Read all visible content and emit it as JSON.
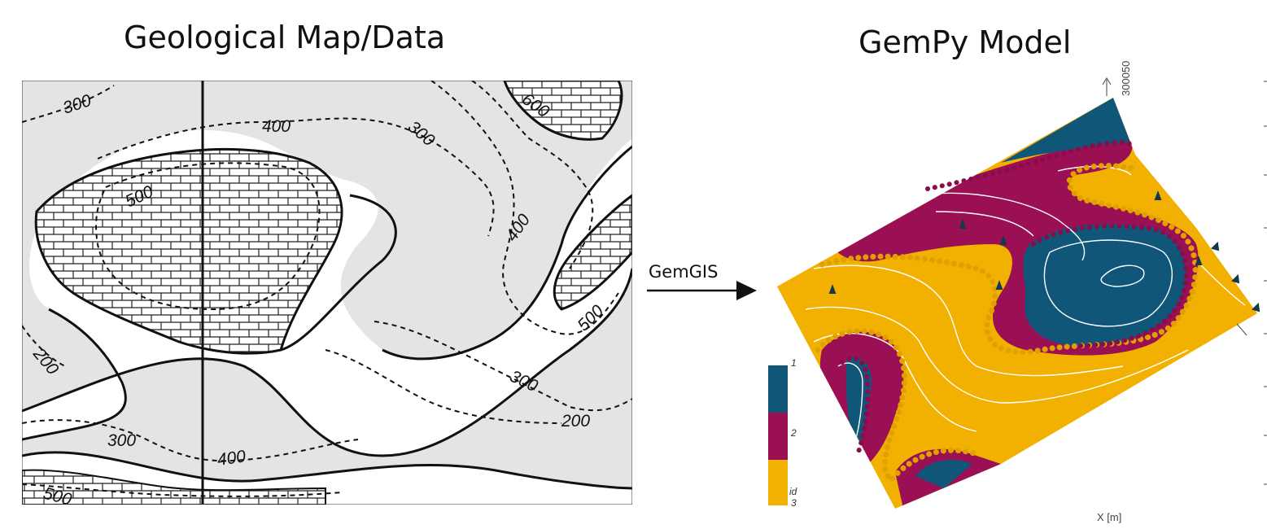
{
  "titles": {
    "left": "Geological Map/Data",
    "right": "GemPy Model"
  },
  "arrow": {
    "label": "GemGIS"
  },
  "geo_map": {
    "contour_labels": [
      "300",
      "400",
      "300",
      "600",
      "500",
      "400",
      "500",
      "200",
      "300",
      "200",
      "300",
      "400",
      "500"
    ]
  },
  "colorbar": {
    "labels": [
      "1",
      "2",
      "id",
      "3"
    ],
    "colors": [
      "#0f5679",
      "#9b0f54",
      "#f2b100"
    ]
  },
  "axes": {
    "x_label": "X [m]",
    "y_tick": "300050"
  }
}
